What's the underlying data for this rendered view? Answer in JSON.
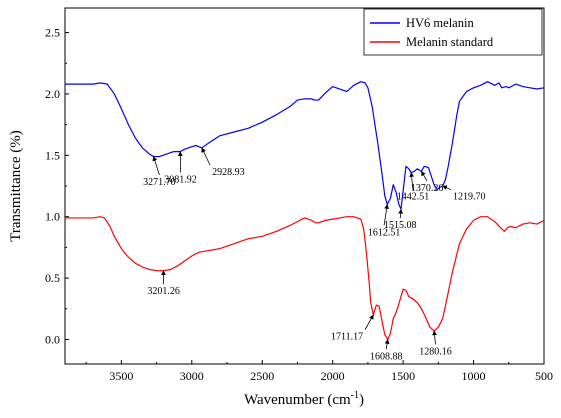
{
  "chart_data": {
    "type": "line",
    "xlabel": "Wavenumber (cm",
    "xlabel_sup": "-1",
    "xlabel_close": ")",
    "ylabel": "Transmittance (%)",
    "xlim": [
      3900,
      500
    ],
    "x_reversed": true,
    "ylim": [
      -0.2,
      2.7
    ],
    "xticks": [
      3500,
      3000,
      2500,
      2000,
      1500,
      1000,
      500
    ],
    "yticks": [
      0.0,
      0.5,
      1.0,
      1.5,
      2.0,
      2.5
    ],
    "xtick_labels": [
      "3500",
      "3000",
      "2500",
      "2000",
      "1500",
      "1000",
      "500"
    ],
    "ytick_labels": [
      "0.0",
      "0.5",
      "1.0",
      "1.5",
      "2.0",
      "2.5"
    ],
    "grid": false,
    "legend_position": "top-right",
    "series": [
      {
        "name": "HV6 melanin",
        "color": "#0000ff",
        "x": [
          3900,
          3700,
          3650,
          3600,
          3550,
          3500,
          3450,
          3400,
          3350,
          3300,
          3271.7,
          3230,
          3180,
          3130,
          3081.92,
          3050,
          3000,
          2970,
          2928.93,
          2880,
          2800,
          2700,
          2600,
          2500,
          2400,
          2300,
          2250,
          2200,
          2150,
          2130,
          2100,
          2050,
          2000,
          1950,
          1900,
          1850,
          1800,
          1770,
          1750,
          1720,
          1700,
          1680,
          1650,
          1630,
          1612.51,
          1590,
          1570,
          1550,
          1530,
          1515.08,
          1495,
          1480,
          1460,
          1442.51,
          1420,
          1400,
          1370.26,
          1350,
          1320,
          1300,
          1280,
          1260,
          1240,
          1219.7,
          1200,
          1180,
          1150,
          1120,
          1100,
          1050,
          1000,
          950,
          900,
          850,
          820,
          800,
          770,
          750,
          700,
          650,
          600,
          550,
          500
        ],
        "y": [
          2.08,
          2.08,
          2.09,
          2.08,
          2.0,
          1.88,
          1.75,
          1.64,
          1.56,
          1.51,
          1.49,
          1.49,
          1.51,
          1.53,
          1.53,
          1.55,
          1.57,
          1.58,
          1.56,
          1.6,
          1.66,
          1.69,
          1.72,
          1.77,
          1.83,
          1.9,
          1.95,
          1.96,
          1.96,
          1.95,
          1.95,
          2.01,
          2.06,
          2.04,
          2.02,
          2.07,
          2.1,
          2.09,
          2.05,
          1.9,
          1.75,
          1.6,
          1.35,
          1.17,
          1.1,
          1.15,
          1.26,
          1.2,
          1.1,
          1.06,
          1.26,
          1.41,
          1.39,
          1.36,
          1.37,
          1.39,
          1.37,
          1.41,
          1.4,
          1.33,
          1.26,
          1.22,
          1.24,
          1.25,
          1.3,
          1.41,
          1.6,
          1.82,
          1.94,
          2.02,
          2.05,
          2.07,
          2.1,
          2.07,
          2.09,
          2.05,
          2.06,
          2.05,
          2.08,
          2.06,
          2.05,
          2.04,
          2.05
        ]
      },
      {
        "name": "Melanin standard",
        "color": "#ff0000",
        "x": [
          3900,
          3700,
          3650,
          3620,
          3580,
          3550,
          3500,
          3450,
          3400,
          3350,
          3300,
          3250,
          3201.26,
          3150,
          3100,
          3050,
          3000,
          2950,
          2900,
          2800,
          2700,
          2600,
          2500,
          2400,
          2300,
          2250,
          2200,
          2150,
          2120,
          2100,
          2050,
          2000,
          1950,
          1900,
          1850,
          1800,
          1780,
          1760,
          1740,
          1730,
          1711.17,
          1690,
          1670,
          1650,
          1630,
          1608.88,
          1590,
          1570,
          1550,
          1530,
          1500,
          1480,
          1460,
          1430,
          1400,
          1370,
          1340,
          1310,
          1280.16,
          1250,
          1220,
          1200,
          1150,
          1100,
          1050,
          1000,
          950,
          900,
          850,
          800,
          780,
          760,
          740,
          700,
          650,
          600,
          550,
          500
        ],
        "y": [
          0.99,
          0.99,
          1.0,
          0.99,
          0.92,
          0.84,
          0.74,
          0.67,
          0.62,
          0.59,
          0.57,
          0.56,
          0.56,
          0.57,
          0.6,
          0.64,
          0.68,
          0.71,
          0.72,
          0.74,
          0.78,
          0.82,
          0.84,
          0.88,
          0.93,
          0.96,
          0.99,
          0.97,
          0.95,
          0.95,
          0.97,
          0.98,
          0.99,
          1.0,
          1.0,
          0.98,
          0.9,
          0.7,
          0.45,
          0.3,
          0.2,
          0.28,
          0.27,
          0.15,
          0.04,
          0.0,
          0.05,
          0.17,
          0.22,
          0.29,
          0.41,
          0.4,
          0.35,
          0.33,
          0.3,
          0.25,
          0.18,
          0.1,
          0.07,
          0.1,
          0.17,
          0.27,
          0.55,
          0.78,
          0.9,
          0.97,
          1.0,
          1.0,
          0.96,
          0.9,
          0.88,
          0.91,
          0.92,
          0.91,
          0.94,
          0.95,
          0.94,
          0.97
        ]
      }
    ],
    "annotations": [
      {
        "label": "3271.70",
        "x": 3271.7,
        "y": 1.49,
        "tx": 3230,
        "ty": 1.34
      },
      {
        "label": "3081.92",
        "x": 3081.92,
        "y": 1.53,
        "tx": 3080,
        "ty": 1.36
      },
      {
        "label": "2928.93",
        "x": 2928.93,
        "y": 1.56,
        "tx": 2870,
        "ty": 1.42
      },
      {
        "label": "1612.51",
        "x": 1612.51,
        "y": 1.1,
        "tx": 1635,
        "ty": 0.93
      },
      {
        "label": "1515.08",
        "x": 1515.08,
        "y": 1.06,
        "tx": 1520,
        "ty": 0.99
      },
      {
        "label": "1442.51",
        "x": 1442.51,
        "y": 1.36,
        "tx": 1430,
        "ty": 1.22
      },
      {
        "label": "1370.26",
        "x": 1370.26,
        "y": 1.37,
        "tx": 1330,
        "ty": 1.29
      },
      {
        "label": "1219.70",
        "x": 1219.7,
        "y": 1.25,
        "tx": 1160,
        "ty": 1.22
      },
      {
        "label": "3201.26",
        "x": 3201.26,
        "y": 0.56,
        "tx": 3200,
        "ty": 0.45
      },
      {
        "label": "1711.17",
        "x": 1711.17,
        "y": 0.2,
        "tx": 1770,
        "ty": 0.08
      },
      {
        "label": "1608.88",
        "x": 1608.88,
        "y": 0.0,
        "tx": 1620,
        "ty": -0.08
      },
      {
        "label": "1280.16",
        "x": 1280.16,
        "y": 0.07,
        "tx": 1270,
        "ty": -0.04
      }
    ]
  }
}
